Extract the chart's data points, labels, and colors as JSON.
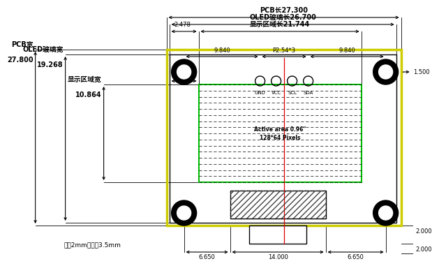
{
  "bg_color": "#ffffff",
  "black": "#000000",
  "yellow": "#cccc00",
  "green": "#00bb00",
  "red": "#dd0000",
  "gray_hatch": "#555555",
  "active_area_text": "Active area 0.96\"",
  "pixel_text": "128*64 Pixels",
  "pin_labels": [
    "GND",
    "VCC",
    "SCL",
    "SDA"
  ],
  "top_labels": [
    "PCB长27.300",
    "OLED玻璃长26.700",
    "显示区域长21.744"
  ],
  "left_labels": [
    "PCB宽",
    "OLED玻璃宽",
    "显示区域宽"
  ],
  "left_vals": [
    "27.800",
    "19.268",
    "10.864"
  ]
}
